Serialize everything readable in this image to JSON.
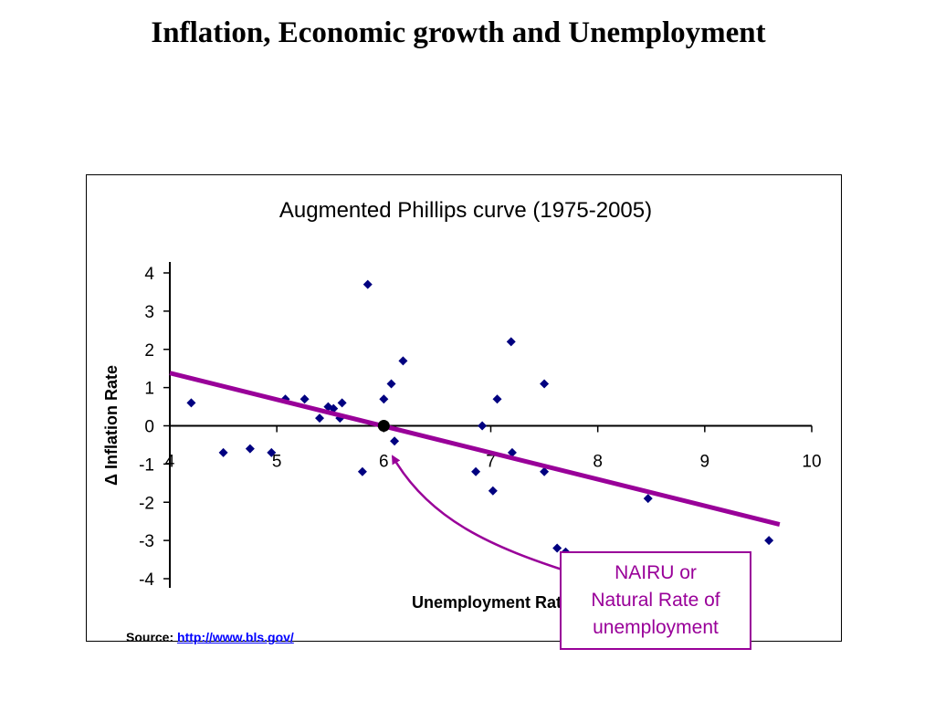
{
  "slide": {
    "title": "Inflation, Economic growth and Unemployment"
  },
  "chart_data": {
    "type": "scatter",
    "title": "Augmented Phillips curve (1975-2005)",
    "xlabel": "Unemployment Rate",
    "ylabel": "Δ Inflation Rate",
    "xlim": [
      4,
      10
    ],
    "ylim": [
      -4,
      4
    ],
    "xticks": [
      4,
      5,
      6,
      7,
      8,
      9,
      10
    ],
    "yticks": [
      4,
      3,
      2,
      1,
      0,
      -1,
      -2,
      -3,
      -4
    ],
    "grid": false,
    "legend": "none",
    "point_color": "#000080",
    "trend_color": "#990099",
    "points": [
      {
        "x": 4.2,
        "y": 0.6
      },
      {
        "x": 4.5,
        "y": -0.7
      },
      {
        "x": 4.75,
        "y": -0.6
      },
      {
        "x": 4.95,
        "y": -0.7
      },
      {
        "x": 5.08,
        "y": 0.7
      },
      {
        "x": 5.26,
        "y": 0.7
      },
      {
        "x": 5.4,
        "y": 0.2
      },
      {
        "x": 5.48,
        "y": 0.5
      },
      {
        "x": 5.53,
        "y": 0.45
      },
      {
        "x": 5.59,
        "y": 0.2
      },
      {
        "x": 5.61,
        "y": 0.6
      },
      {
        "x": 5.8,
        "y": -1.2
      },
      {
        "x": 5.85,
        "y": 3.7
      },
      {
        "x": 6.0,
        "y": 0.7
      },
      {
        "x": 6.07,
        "y": 1.1
      },
      {
        "x": 6.1,
        "y": -0.4
      },
      {
        "x": 6.18,
        "y": 1.7
      },
      {
        "x": 6.86,
        "y": -1.2
      },
      {
        "x": 6.92,
        "y": 0.0
      },
      {
        "x": 7.02,
        "y": -1.7
      },
      {
        "x": 7.06,
        "y": 0.7
      },
      {
        "x": 7.19,
        "y": 2.2
      },
      {
        "x": 7.2,
        "y": -0.7
      },
      {
        "x": 7.5,
        "y": 1.1
      },
      {
        "x": 7.5,
        "y": -1.2
      },
      {
        "x": 7.62,
        "y": -3.2
      },
      {
        "x": 7.7,
        "y": -3.3
      },
      {
        "x": 8.47,
        "y": -1.9
      },
      {
        "x": 9.6,
        "y": -3.0
      }
    ],
    "trendline": [
      {
        "x": 4.0,
        "y": 1.38
      },
      {
        "x": 9.7,
        "y": -2.58
      }
    ],
    "nairu": {
      "x": 6.0,
      "y": 0.0
    }
  },
  "callout": {
    "lines": [
      "NAIRU or",
      "Natural Rate of",
      "unemployment"
    ],
    "color": "#990099"
  },
  "source": {
    "label": "Source:",
    "link": "http://www.bls.gov/"
  }
}
